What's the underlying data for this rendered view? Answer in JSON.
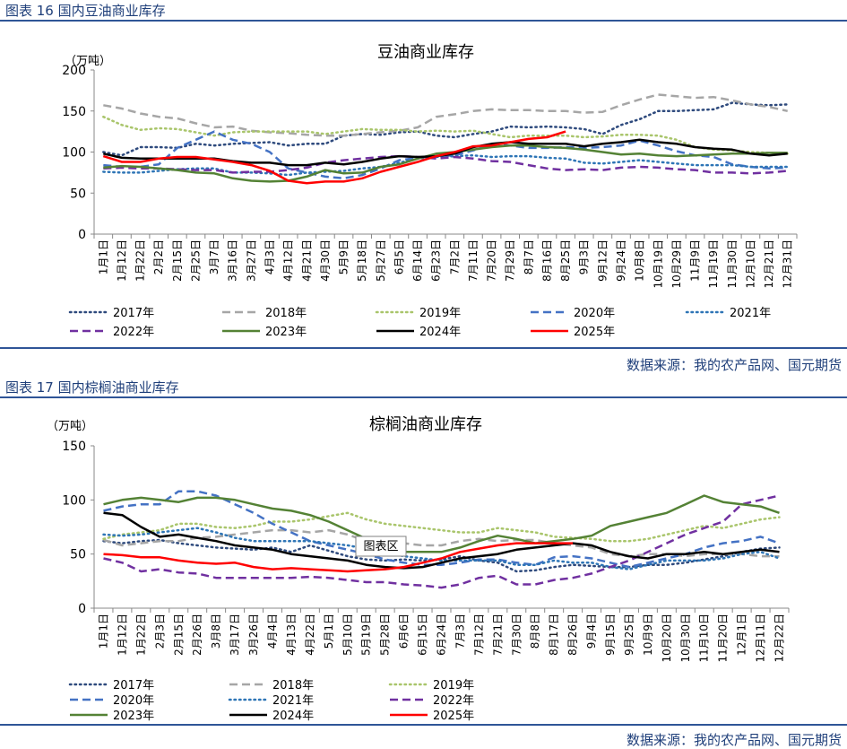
{
  "figures": [
    {
      "header": "图表 16 国内豆油商业库存",
      "source": "数据来源：我的农产品网、国元期货"
    },
    {
      "header": "图表 17 国内棕榈油商业库存",
      "source": "数据来源：我的农产品网、国元期货"
    }
  ],
  "chart_data": [
    {
      "type": "line",
      "title": "豆油商业库存",
      "ylabel": "（万吨）",
      "ylim": [
        0,
        200
      ],
      "yticks": [
        "0",
        "50",
        "100",
        "150",
        "200"
      ],
      "categories": [
        "1月1日",
        "1月12日",
        "1月22日",
        "2月2日",
        "2月15日",
        "2月25日",
        "3月7日",
        "3月16日",
        "3月27日",
        "4月3日",
        "4月12日",
        "4月21日",
        "4月30日",
        "5月9日",
        "5月18日",
        "5月27日",
        "6月5日",
        "6月14日",
        "6月23日",
        "7月2日",
        "7月11日",
        "7月20日",
        "7月29日",
        "8月7日",
        "8月16日",
        "8月25日",
        "9月3日",
        "9月12日",
        "9月24日",
        "10月8日",
        "10月19日",
        "10月29日",
        "11月9日",
        "11月19日",
        "11月30日",
        "12月10日",
        "12月21日",
        "12月31日"
      ],
      "series": [
        {
          "name": "2017年",
          "color": "#2e4a7d",
          "dash": "dot",
          "values": [
            100,
            96,
            106,
            106,
            105,
            110,
            108,
            110,
            111,
            112,
            108,
            110,
            110,
            120,
            122,
            121,
            124,
            125,
            120,
            118,
            122,
            125,
            131,
            130,
            131,
            130,
            128,
            122,
            133,
            140,
            150,
            150,
            151,
            152,
            160,
            158,
            157,
            158
          ]
        },
        {
          "name": "2018年",
          "color": "#a6a6a6",
          "dash": "dash",
          "values": [
            157,
            153,
            147,
            143,
            141,
            135,
            130,
            131,
            126,
            124,
            123,
            121,
            120,
            120,
            122,
            124,
            126,
            130,
            143,
            146,
            150,
            152,
            151,
            151,
            150,
            150,
            148,
            149,
            157,
            164,
            170,
            168,
            166,
            167,
            163,
            158,
            155,
            150
          ]
        },
        {
          "name": "2019年",
          "color": "#a9c56b",
          "dash": "dot",
          "values": [
            143,
            133,
            127,
            129,
            128,
            124,
            120,
            124,
            125,
            125,
            125,
            125,
            122,
            125,
            128,
            127,
            127,
            125,
            126,
            125,
            126,
            122,
            118,
            120,
            120,
            120,
            118,
            119,
            121,
            121,
            120,
            115,
            106,
            103,
            102,
            100,
            99,
            98
          ]
        },
        {
          "name": "2020年",
          "color": "#4472c4",
          "dash": "dash",
          "values": [
            84,
            82,
            82,
            85,
            105,
            115,
            125,
            115,
            110,
            100,
            80,
            75,
            70,
            68,
            72,
            80,
            90,
            93,
            95,
            96,
            102,
            110,
            108,
            105,
            105,
            106,
            105,
            106,
            108,
            114,
            108,
            101,
            96,
            94,
            85,
            82,
            80,
            81
          ]
        },
        {
          "name": "2021年",
          "color": "#2e75b6",
          "dash": "dot",
          "values": [
            76,
            75,
            75,
            77,
            79,
            80,
            80,
            75,
            75,
            74,
            72,
            75,
            76,
            77,
            80,
            82,
            87,
            92,
            94,
            95,
            96,
            94,
            95,
            95,
            93,
            92,
            87,
            86,
            88,
            90,
            88,
            86,
            84,
            84,
            84,
            82,
            82,
            82
          ]
        },
        {
          "name": "2022年",
          "color": "#7030a0",
          "dash": "dash",
          "values": [
            80,
            81,
            80,
            80,
            79,
            78,
            78,
            75,
            76,
            76,
            78,
            81,
            87,
            90,
            92,
            94,
            95,
            94,
            92,
            94,
            92,
            89,
            88,
            84,
            80,
            78,
            79,
            78,
            81,
            82,
            81,
            79,
            78,
            75,
            75,
            74,
            75,
            77
          ]
        },
        {
          "name": "2023年",
          "color": "#548235",
          "dash": "solid",
          "values": [
            81,
            83,
            82,
            80,
            78,
            75,
            74,
            68,
            65,
            64,
            65,
            70,
            78,
            74,
            75,
            82,
            85,
            92,
            98,
            100,
            103,
            106,
            108,
            108,
            106,
            105,
            103,
            100,
            97,
            98,
            96,
            95,
            96,
            97,
            98,
            98,
            99,
            99
          ]
        },
        {
          "name": "2024年",
          "color": "#000000",
          "dash": "solid",
          "values": [
            98,
            93,
            92,
            92,
            92,
            92,
            92,
            89,
            87,
            87,
            84,
            84,
            87,
            85,
            88,
            92,
            95,
            94,
            95,
            98,
            106,
            110,
            112,
            110,
            110,
            110,
            107,
            110,
            112,
            115,
            112,
            110,
            106,
            104,
            103,
            98,
            96,
            98
          ]
        },
        {
          "name": "2025年",
          "color": "#ff0000",
          "dash": "solid",
          "values": [
            95,
            88,
            88,
            92,
            94,
            94,
            91,
            88,
            84,
            77,
            65,
            62,
            64,
            64,
            68,
            76,
            82,
            88,
            95,
            100,
            107,
            108,
            112,
            116,
            118,
            125,
            null,
            null,
            null,
            null,
            null,
            null,
            null,
            null,
            null,
            null,
            null,
            null
          ]
        }
      ]
    },
    {
      "type": "line",
      "title": "棕榈油商业库存",
      "ylabel": "（万吨）",
      "ylim": [
        0,
        150
      ],
      "yticks": [
        "0",
        "50",
        "100",
        "150"
      ],
      "tooltip": "图表区",
      "categories": [
        "1月1日",
        "1月12日",
        "1月22日",
        "2月3日",
        "2月15日",
        "2月26日",
        "3月8日",
        "3月17日",
        "3月26日",
        "4月4日",
        "4月13日",
        "4月22日",
        "5月1日",
        "5月10日",
        "5月19日",
        "5月28日",
        "6月6日",
        "6月15日",
        "6月24日",
        "7月3日",
        "7月12日",
        "7月21日",
        "7月30日",
        "8月8日",
        "8月17日",
        "8月26日",
        "9月4日",
        "9月15日",
        "9月25日",
        "10月9日",
        "10月20日",
        "10月30日",
        "11月10日",
        "11月20日",
        "12月1日",
        "12月11日",
        "12月22日"
      ],
      "series": [
        {
          "name": "2017年",
          "color": "#2e4a7d",
          "dash": "dot",
          "values": [
            62,
            60,
            62,
            63,
            60,
            58,
            56,
            55,
            54,
            56,
            52,
            58,
            53,
            48,
            45,
            44,
            45,
            44,
            45,
            48,
            44,
            42,
            34,
            35,
            38,
            40,
            39,
            38,
            38,
            40,
            40,
            42,
            45,
            48,
            52,
            55,
            56
          ]
        },
        {
          "name": "2018年",
          "color": "#a6a6a6",
          "dash": "dash",
          "values": [
            63,
            58,
            60,
            62,
            62,
            65,
            66,
            68,
            70,
            72,
            72,
            70,
            72,
            68,
            62,
            62,
            60,
            58,
            58,
            62,
            64,
            62,
            63,
            63,
            60,
            58,
            56,
            50,
            48,
            50,
            50,
            48,
            50,
            50,
            50,
            48,
            48
          ]
        },
        {
          "name": "2019年",
          "color": "#a9c56b",
          "dash": "dot",
          "values": [
            64,
            68,
            70,
            72,
            78,
            78,
            75,
            74,
            76,
            80,
            80,
            82,
            85,
            88,
            82,
            78,
            76,
            74,
            72,
            70,
            70,
            74,
            72,
            70,
            66,
            65,
            64,
            62,
            62,
            64,
            68,
            72,
            76,
            74,
            78,
            82,
            84
          ]
        },
        {
          "name": "2020年",
          "color": "#4472c4",
          "dash": "dash",
          "values": [
            90,
            94,
            96,
            96,
            108,
            108,
            104,
            96,
            88,
            78,
            70,
            62,
            58,
            54,
            50,
            45,
            42,
            40,
            40,
            42,
            45,
            45,
            42,
            40,
            47,
            48,
            46,
            42,
            38,
            42,
            46,
            50,
            56,
            60,
            62,
            66,
            60
          ]
        },
        {
          "name": "2021年",
          "color": "#2e75b6",
          "dash": "dot",
          "values": [
            68,
            67,
            68,
            70,
            72,
            74,
            70,
            65,
            62,
            62,
            62,
            62,
            60,
            58,
            55,
            52,
            48,
            46,
            44,
            44,
            44,
            44,
            40,
            40,
            44,
            42,
            42,
            38,
            36,
            40,
            44,
            44,
            44,
            46,
            50,
            52,
            46
          ]
        },
        {
          "name": "2022年",
          "color": "#7030a0",
          "dash": "dash",
          "values": [
            46,
            42,
            34,
            36,
            33,
            32,
            28,
            28,
            28,
            28,
            28,
            29,
            28,
            26,
            24,
            24,
            22,
            21,
            19,
            22,
            28,
            30,
            22,
            22,
            26,
            28,
            32,
            38,
            44,
            52,
            60,
            68,
            74,
            80,
            96,
            100,
            104
          ]
        },
        {
          "name": "2023年",
          "color": "#548235",
          "dash": "solid",
          "values": [
            96,
            100,
            102,
            100,
            98,
            102,
            102,
            100,
            96,
            92,
            90,
            86,
            80,
            72,
            64,
            55,
            52,
            52,
            52,
            56,
            62,
            67,
            64,
            60,
            62,
            64,
            67,
            76,
            80,
            84,
            88,
            96,
            104,
            98,
            96,
            94,
            88
          ]
        },
        {
          "name": "2024年",
          "color": "#000000",
          "dash": "solid",
          "values": [
            88,
            86,
            75,
            66,
            68,
            65,
            62,
            58,
            56,
            54,
            50,
            48,
            46,
            44,
            40,
            38,
            37,
            38,
            42,
            46,
            48,
            50,
            54,
            56,
            58,
            60,
            58,
            52,
            48,
            46,
            50,
            50,
            52,
            50,
            52,
            54,
            52
          ]
        },
        {
          "name": "2025年",
          "color": "#ff0000",
          "dash": "solid",
          "values": [
            50,
            49,
            47,
            47,
            44,
            42,
            41,
            42,
            38,
            36,
            37,
            36,
            35,
            34,
            35,
            36,
            38,
            42,
            46,
            52,
            55,
            58,
            60,
            60,
            60,
            60,
            null,
            null,
            null,
            null,
            null,
            null,
            null,
            null,
            null,
            null,
            null
          ]
        }
      ]
    }
  ]
}
